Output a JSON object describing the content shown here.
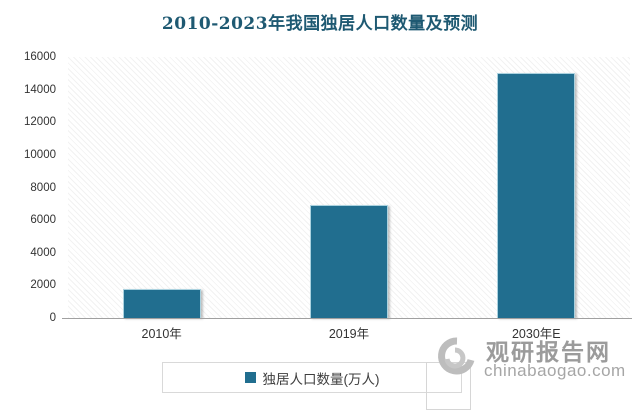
{
  "chart_data": {
    "type": "bar",
    "title": "2010-2023年我国独居人口数量及预测",
    "categories": [
      "2010年",
      "2019年",
      "2030年E"
    ],
    "series": [
      {
        "name": "独居人口数量(万人)",
        "values": [
          1800,
          6900,
          15000
        ]
      }
    ],
    "values": [
      1800,
      6900,
      15000
    ],
    "xlabel": "",
    "ylabel": "",
    "ylim": [
      0,
      16000
    ],
    "yticks": [
      0,
      2000,
      4000,
      6000,
      8000,
      10000,
      12000,
      14000,
      16000
    ],
    "grid": false,
    "legend_position": "bottom",
    "plot_background": "diagonal-hatch"
  },
  "colors": {
    "bar": "#216E8F",
    "bar_border": "#ABD2DF",
    "title": "#1E5972",
    "axis_text": "#333333",
    "axis_line": "#A0A0A0",
    "legend_border": "#D9D9D9",
    "watermark": "#9B9B9B"
  },
  "watermark": {
    "brand": "观研报告网",
    "domain": "chinabaogao.com"
  }
}
